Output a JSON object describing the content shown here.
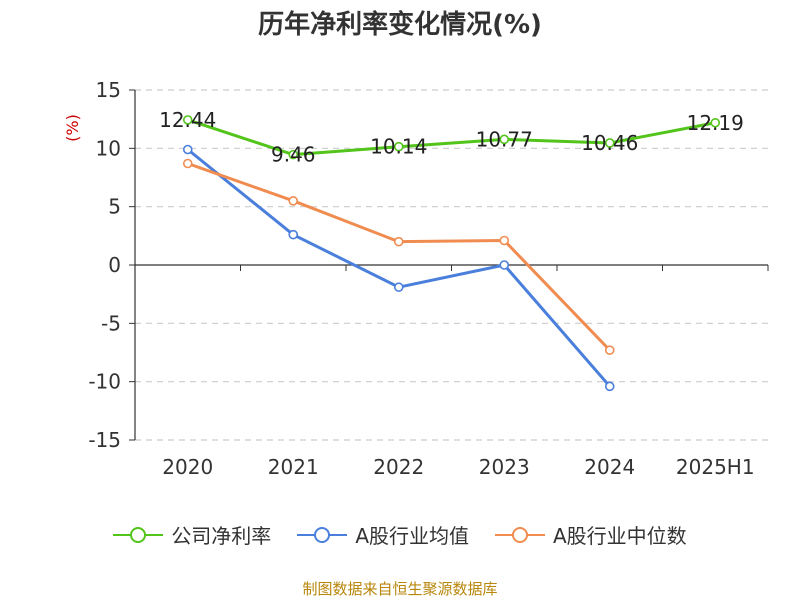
{
  "chart_data": {
    "type": "line",
    "title": "历年净利率变化情况(%)",
    "ylabel": "(%)",
    "xlabel": "",
    "categories": [
      "2020",
      "2021",
      "2022",
      "2023",
      "2024",
      "2025H1"
    ],
    "ylim": [
      -15,
      15
    ],
    "yticks": [
      15,
      10,
      5,
      0,
      -5,
      -10,
      -15
    ],
    "grid": true,
    "legend_position": "bottom",
    "series": [
      {
        "name": "公司净利率",
        "color": "#52c41a",
        "values": [
          12.44,
          9.46,
          10.14,
          10.77,
          10.46,
          12.19
        ],
        "labels": [
          "12.44",
          "9.46",
          "10.14",
          "10.77",
          "10.46",
          "12.19"
        ]
      },
      {
        "name": "A股行业均值",
        "color": "#4a7fdb",
        "values": [
          9.9,
          2.6,
          -1.9,
          0.0,
          -10.4,
          null
        ]
      },
      {
        "name": "A股行业中位数",
        "color": "#f08c50",
        "values": [
          8.7,
          5.5,
          2.0,
          2.1,
          -7.3,
          null
        ]
      }
    ]
  },
  "legend": {
    "items": [
      {
        "label": "公司净利率",
        "color": "#52c41a"
      },
      {
        "label": "A股行业均值",
        "color": "#4a7fdb"
      },
      {
        "label": "A股行业中位数",
        "color": "#f08c50"
      }
    ]
  },
  "footer": {
    "source": "制图数据来自恒生聚源数据库"
  }
}
